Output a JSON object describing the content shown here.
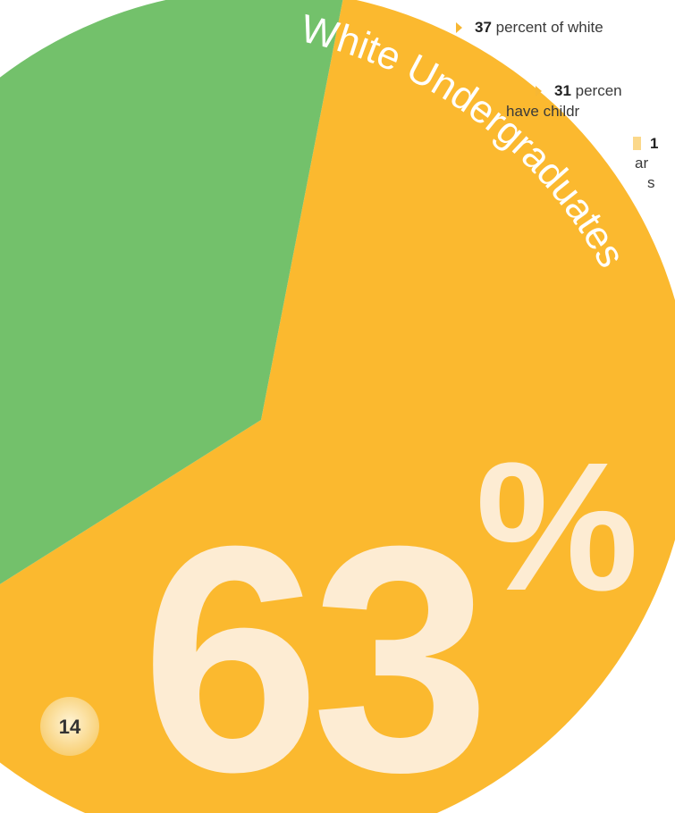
{
  "chart_data": {
    "type": "pie",
    "title": "White Undergraduates",
    "slices": [
      {
        "label": "White Undergraduates",
        "value": 63,
        "color": "#fbb92f"
      },
      {
        "label": "",
        "value": 37,
        "color": "#73c16b"
      }
    ],
    "big_label": "63%",
    "big_label_number": "63",
    "big_label_suffix": "%"
  },
  "page_number": "14",
  "bullets": [
    {
      "number": "37",
      "text": " percent of white"
    },
    {
      "number": "31",
      "text": " percen"
    },
    {
      "text": "have childr"
    },
    {
      "text": "1"
    },
    {
      "text": "ar"
    },
    {
      "text": "s"
    }
  ],
  "colors": {
    "orange": "#fbb92f",
    "green": "#73c16b",
    "cream": "#fdecd3",
    "badge": "#fdd98a",
    "bullet_marker": "#f7b733"
  }
}
